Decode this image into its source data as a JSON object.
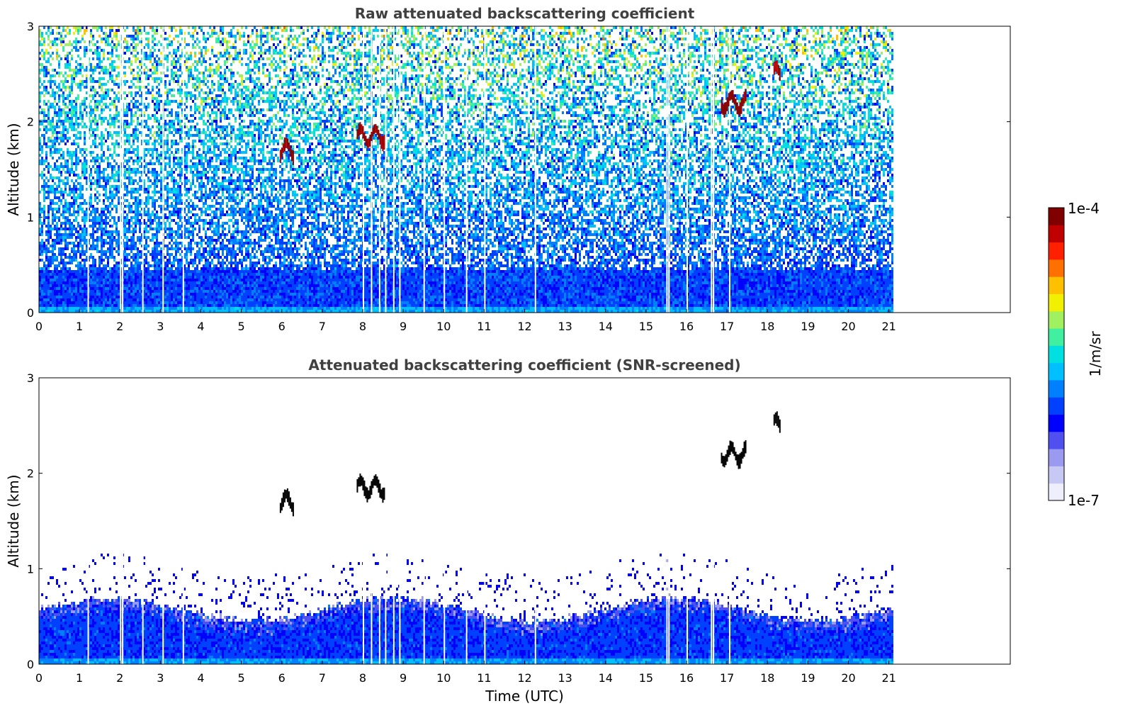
{
  "chart_data": [
    {
      "type": "heatmap",
      "title": "Raw attenuated backscattering coefficient",
      "xlabel": "",
      "ylabel": "Altitude (km)",
      "xlim": [
        0,
        24
      ],
      "ylim": [
        0,
        3
      ],
      "x_ticks": [
        "0",
        "1",
        "2",
        "3",
        "4",
        "5",
        "6",
        "7",
        "8",
        "9",
        "10",
        "11",
        "12",
        "13",
        "14",
        "15",
        "16",
        "17",
        "18",
        "19",
        "20",
        "21"
      ],
      "y_ticks": [
        "0",
        "1",
        "2",
        "3"
      ],
      "data_end_time": 21.1,
      "boundary_layer_top_km": 0.45,
      "gap_times": [
        1.2,
        2.0,
        2.05,
        2.55,
        3.05,
        3.55,
        8.0,
        8.2,
        8.4,
        8.55,
        8.75,
        8.9,
        9.5,
        10.0,
        10.55,
        11.0,
        12.25,
        15.5,
        15.55,
        16.0,
        16.6,
        16.65,
        17.05
      ],
      "cloud_layers": [
        {
          "t_start": 5.95,
          "t_end": 6.3,
          "alt_km": 1.7
        },
        {
          "t_start": 7.85,
          "t_end": 8.55,
          "alt_km": 1.85
        },
        {
          "t_start": 16.85,
          "t_end": 17.45,
          "alt_km": 2.2
        },
        {
          "t_start": 18.15,
          "t_end": 18.3,
          "alt_km": 2.5
        }
      ]
    },
    {
      "type": "heatmap",
      "title": "Attenuated backscattering coefficient (SNR-screened)",
      "xlabel": "Time (UTC)",
      "ylabel": "Altitude (km)",
      "xlim": [
        0,
        24
      ],
      "ylim": [
        0,
        3
      ],
      "x_ticks": [
        "0",
        "1",
        "2",
        "3",
        "4",
        "5",
        "6",
        "7",
        "8",
        "9",
        "10",
        "11",
        "12",
        "13",
        "14",
        "15",
        "16",
        "17",
        "18",
        "19",
        "20",
        "21"
      ],
      "y_ticks": [
        "0",
        "1",
        "2",
        "3"
      ],
      "data_end_time": 21.1,
      "boundary_layer_top_km": 0.55,
      "cloud_layers": [
        {
          "t_start": 5.95,
          "t_end": 6.3,
          "alt_km": 1.7
        },
        {
          "t_start": 7.85,
          "t_end": 8.55,
          "alt_km": 1.85
        },
        {
          "t_start": 16.85,
          "t_end": 17.45,
          "alt_km": 2.2
        },
        {
          "t_start": 18.15,
          "t_end": 18.3,
          "alt_km": 2.5
        }
      ]
    }
  ],
  "colorbar": {
    "label": "1/m/sr",
    "max_label": "1e-4",
    "min_label": "1e-7",
    "colors": [
      "#eeeefc",
      "#c8c8f4",
      "#9a9af0",
      "#5050f0",
      "#0000ff",
      "#0040ff",
      "#0080ff",
      "#00c0ff",
      "#00e0e0",
      "#40f0a0",
      "#a0f060",
      "#f0f000",
      "#ffc000",
      "#ff7000",
      "#ff2000",
      "#c00000",
      "#800000"
    ]
  }
}
